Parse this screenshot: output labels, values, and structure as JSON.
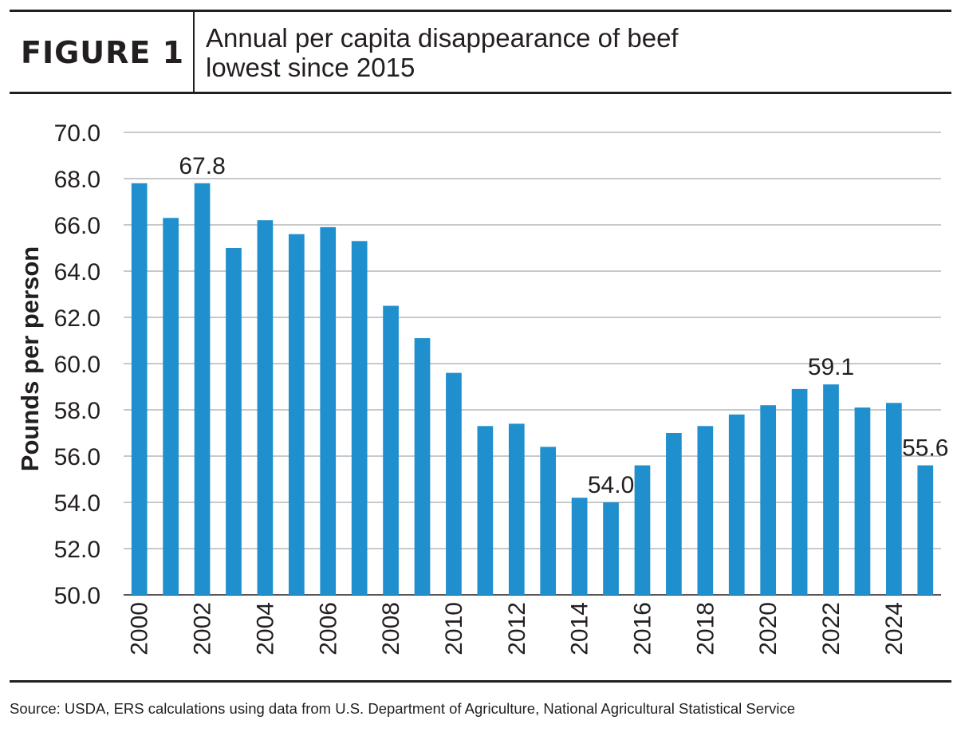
{
  "header": {
    "figure_label": "FIGURE 1",
    "title_line1": "Annual per capita disappearance of beef",
    "title_line2": "lowest since 2015"
  },
  "chart_data": {
    "type": "bar",
    "title": "Annual per capita disappearance of beef lowest since 2015",
    "xlabel": "",
    "ylabel": "Pounds per person",
    "ylim": [
      50,
      70
    ],
    "yticks": [
      "50.0",
      "52.0",
      "54.0",
      "56.0",
      "58.0",
      "60.0",
      "62.0",
      "64.0",
      "66.0",
      "68.0",
      "70.0"
    ],
    "grid": true,
    "bar_color": "#1f8fcd",
    "categories": [
      "2000",
      "2001",
      "2002",
      "2003",
      "2004",
      "2005",
      "2006",
      "2007",
      "2008",
      "2009",
      "2010",
      "2011",
      "2012",
      "2013",
      "2014",
      "2015",
      "2016",
      "2017",
      "2018",
      "2019",
      "2020",
      "2021",
      "2022",
      "2023",
      "2024",
      "2025"
    ],
    "xtick_labels": [
      "2000",
      "2002",
      "2004",
      "2006",
      "2008",
      "2010",
      "2012",
      "2014",
      "2016",
      "2018",
      "2020",
      "2022",
      "2024"
    ],
    "values": [
      67.8,
      66.3,
      67.8,
      65.0,
      66.2,
      65.6,
      65.9,
      65.3,
      62.5,
      61.1,
      59.6,
      57.3,
      57.4,
      56.4,
      54.2,
      54.0,
      55.6,
      57.0,
      57.3,
      57.8,
      58.2,
      58.9,
      59.1,
      58.1,
      58.3,
      55.6
    ],
    "data_labels": [
      {
        "category": "2002",
        "text": "67.8"
      },
      {
        "category": "2015",
        "text": "54.0"
      },
      {
        "category": "2022",
        "text": "59.1"
      },
      {
        "category": "2025",
        "text": "55.6"
      }
    ]
  },
  "footer": {
    "source": "Source: USDA, ERS calculations using data from U.S. Department of Agriculture, National Agricultural Statistical Service"
  }
}
